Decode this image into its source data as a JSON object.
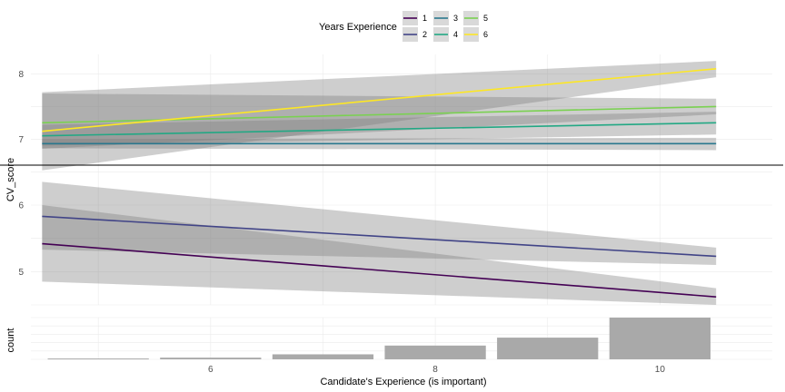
{
  "chart_data": {
    "type": "line",
    "legend": {
      "title": "Years Experience",
      "position": "top",
      "entries": [
        {
          "label": "1",
          "color": "#440154"
        },
        {
          "label": "2",
          "color": "#414487"
        },
        {
          "label": "3",
          "color": "#2a788e"
        },
        {
          "label": "4",
          "color": "#22a884"
        },
        {
          "label": "5",
          "color": "#7ad151"
        },
        {
          "label": "6",
          "color": "#fde725"
        }
      ]
    },
    "panels": [
      {
        "name": "cv-score-upper",
        "ylabel": "CV_score",
        "yticks": [
          7,
          8
        ],
        "ylim": [
          6.6,
          8.3
        ],
        "series": [
          {
            "name": "3",
            "color": "#2a788e",
            "x": [
              4.5,
              10.5
            ],
            "y": [
              6.93,
              6.93
            ],
            "lower": [
              6.86,
              6.83
            ],
            "upper": [
              7.0,
              7.02
            ]
          },
          {
            "name": "4",
            "color": "#22a884",
            "x": [
              4.5,
              10.5
            ],
            "y": [
              7.05,
              7.25
            ],
            "lower": [
              6.9,
              7.07
            ],
            "upper": [
              7.22,
              7.42
            ]
          },
          {
            "name": "5",
            "color": "#7ad151",
            "x": [
              4.5,
              10.5
            ],
            "y": [
              7.25,
              7.5
            ],
            "lower": [
              6.85,
              7.38
            ],
            "upper": [
              7.7,
              7.62
            ]
          },
          {
            "name": "6",
            "color": "#fde725",
            "x": [
              4.5,
              10.5
            ],
            "y": [
              7.12,
              8.08
            ],
            "lower": [
              6.52,
              7.95
            ],
            "upper": [
              7.72,
              8.2
            ]
          }
        ]
      },
      {
        "name": "cv-score-lower",
        "ylabel": "",
        "yticks": [
          5,
          6
        ],
        "ylim": [
          4.5,
          6.6
        ],
        "series": [
          {
            "name": "1",
            "color": "#440154",
            "x": [
              4.5,
              10.5
            ],
            "y": [
              5.42,
              4.62
            ],
            "lower": [
              4.85,
              4.5
            ],
            "upper": [
              6.0,
              4.75
            ]
          },
          {
            "name": "2",
            "color": "#414487",
            "x": [
              4.5,
              10.5
            ],
            "y": [
              5.83,
              5.23
            ],
            "lower": [
              5.33,
              5.1
            ],
            "upper": [
              6.35,
              5.36
            ]
          }
        ]
      },
      {
        "name": "count-histogram",
        "type": "bar",
        "ylabel": "count",
        "ylim": [
          0,
          1
        ],
        "bars": [
          {
            "x": 5,
            "value": 0.02
          },
          {
            "x": 6,
            "value": 0.04
          },
          {
            "x": 7,
            "value": 0.12
          },
          {
            "x": 8,
            "value": 0.33
          },
          {
            "x": 9,
            "value": 0.52
          },
          {
            "x": 10,
            "value": 1.0
          }
        ]
      }
    ],
    "xlabel": "Candidate's Experience (is important)",
    "xticks": [
      6,
      8,
      10
    ],
    "xlim": [
      4.4,
      11.0
    ],
    "grid": true
  }
}
